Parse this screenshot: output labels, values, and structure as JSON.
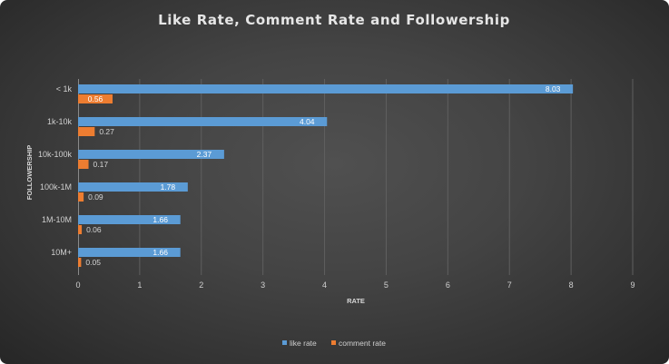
{
  "chart_data": {
    "type": "bar",
    "orientation": "horizontal",
    "title": "Like Rate, Comment Rate and Followership",
    "xlabel": "RATE",
    "ylabel": "FOLLOWERSHIP",
    "categories": [
      "< 1k",
      "1k-10k",
      "10k-100k",
      "100k-1M",
      "1M-10M",
      "10M+"
    ],
    "series": [
      {
        "name": "like rate",
        "color": "#5b9bd5",
        "values": [
          8.03,
          4.04,
          2.37,
          1.78,
          1.66,
          1.66
        ]
      },
      {
        "name": "comment rate",
        "color": "#ed7d31",
        "values": [
          0.56,
          0.27,
          0.17,
          0.09,
          0.06,
          0.05
        ]
      }
    ],
    "data_labels": [
      [
        "8.03",
        "4.04",
        "2.37",
        "1.78",
        "1.66",
        "1.66"
      ],
      [
        "0.56",
        "0.27",
        "0.17",
        "0.09",
        "0.06",
        "0.05"
      ]
    ],
    "xlim": [
      0,
      9
    ],
    "xticks": [
      0,
      1,
      2,
      3,
      4,
      5,
      6,
      7,
      8,
      9
    ],
    "grid": true,
    "legend_position": "bottom"
  }
}
